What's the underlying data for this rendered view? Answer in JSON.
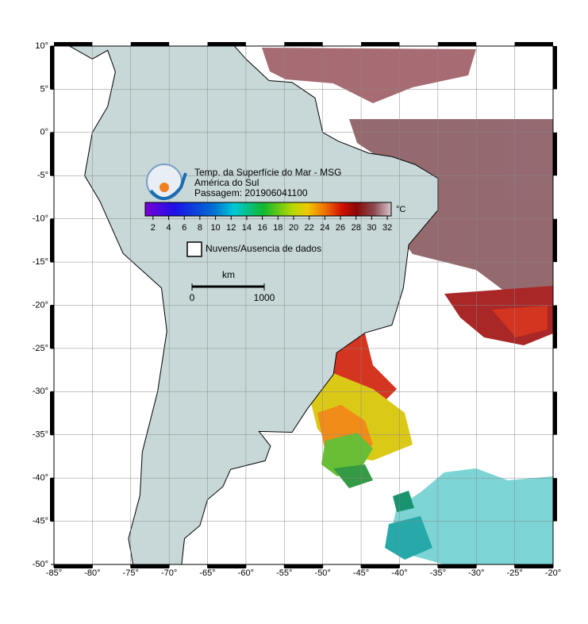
{
  "map": {
    "title_lines": [
      "Temp. da Superfície do Mar - MSG",
      "América do Sul",
      "Passagem: 201906041100"
    ],
    "colorbar": {
      "lim": [
        1,
        32.5
      ],
      "ticks": [
        2,
        4,
        6,
        8,
        10,
        12,
        14,
        16,
        18,
        20,
        22,
        24,
        26,
        28,
        30,
        32
      ],
      "unit": "°C"
    },
    "legend": {
      "label": "Nuvens/Ausencia de dados"
    },
    "scale_bar": {
      "unit": "km",
      "ticks": [
        0,
        1000
      ]
    },
    "lonlim": [
      -85,
      -20
    ],
    "lonticks": [
      {
        "value": -85,
        "label": "-85°"
      },
      {
        "value": -80,
        "label": "-80°"
      },
      {
        "value": -75,
        "label": "-75°"
      },
      {
        "value": -70,
        "label": "-70°"
      },
      {
        "value": -65,
        "label": "-65°"
      },
      {
        "value": -60,
        "label": "-60°"
      },
      {
        "value": -55,
        "label": "-55°"
      },
      {
        "value": -50,
        "label": "-50°"
      },
      {
        "value": -45,
        "label": "-45°"
      },
      {
        "value": -40,
        "label": "-40°"
      },
      {
        "value": -35,
        "label": "-35°"
      },
      {
        "value": -30,
        "label": "-30°"
      },
      {
        "value": -25,
        "label": "-25°"
      },
      {
        "value": -20,
        "label": "-20°"
      }
    ],
    "latlim": [
      -50,
      10
    ],
    "latticks": [
      {
        "value": 10,
        "label": "10°"
      },
      {
        "value": 5,
        "label": "5°"
      },
      {
        "value": 0,
        "label": "0°"
      },
      {
        "value": -5,
        "label": "-5°"
      },
      {
        "value": -10,
        "label": "-10°"
      },
      {
        "value": -15,
        "label": "-15°"
      },
      {
        "value": -20,
        "label": "-20°"
      },
      {
        "value": -25,
        "label": "-25°"
      },
      {
        "value": -30,
        "label": "-30°"
      },
      {
        "value": -35,
        "label": "-35°"
      },
      {
        "value": -40,
        "label": "-40°"
      },
      {
        "value": -45,
        "label": "-45°"
      },
      {
        "value": -50,
        "label": "-50°"
      }
    ]
  }
}
